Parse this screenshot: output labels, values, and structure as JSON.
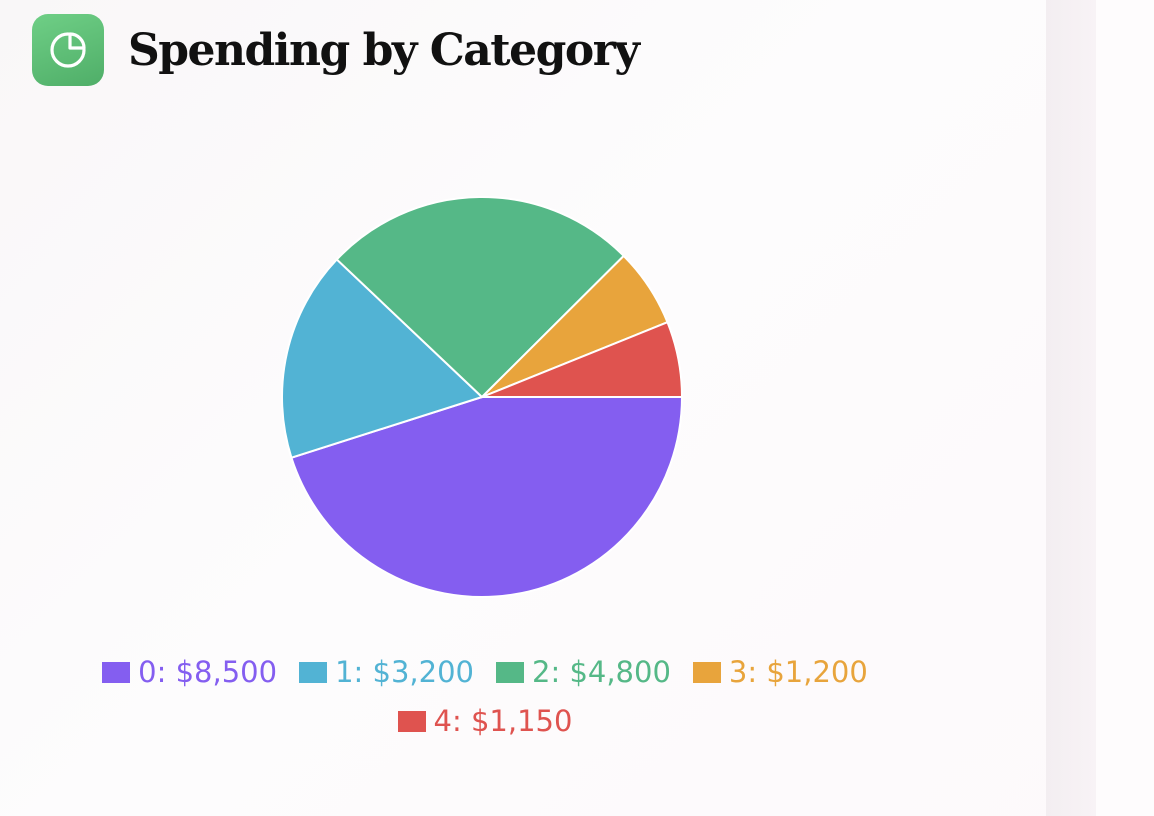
{
  "header": {
    "title": "Spending by Category",
    "icon": "pie-chart-icon"
  },
  "colors": {
    "icon_bg": "#5cbc74"
  },
  "chart_data": {
    "type": "pie",
    "title": "Spending by Category",
    "legend_position": "bottom",
    "slices": [
      {
        "label": "0: $8,500",
        "value": 8500,
        "color": "#845ef0"
      },
      {
        "label": "1: $3,200",
        "value": 3200,
        "color": "#52b3d4"
      },
      {
        "label": "2: $4,800",
        "value": 4800,
        "color": "#55b887"
      },
      {
        "label": "3: $1,200",
        "value": 1200,
        "color": "#e8a43c"
      },
      {
        "label": "4: $1,150",
        "value": 1150,
        "color": "#df534f"
      }
    ]
  }
}
